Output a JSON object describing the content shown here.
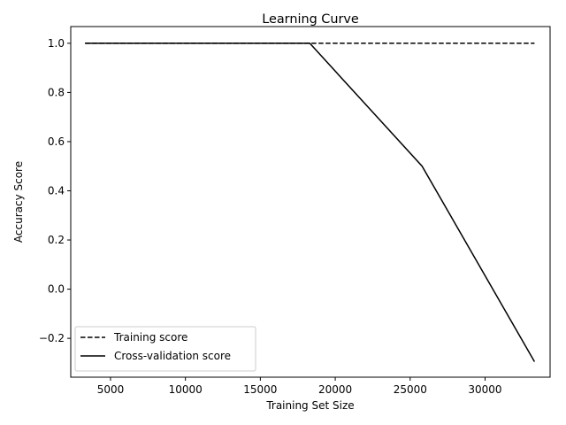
{
  "chart_data": {
    "type": "line",
    "title": "Learning Curve",
    "xlabel": "Training Set Size",
    "ylabel": "Accuracy Score",
    "xlim": [
      2346,
      34339
    ],
    "ylim": [
      -0.358,
      1.068
    ],
    "xticks": [
      5000,
      10000,
      15000,
      20000,
      25000,
      30000
    ],
    "xtick_labels": [
      "5000",
      "10000",
      "15000",
      "20000",
      "25000",
      "30000"
    ],
    "yticks": [
      -0.2,
      0.0,
      0.2,
      0.4,
      0.6,
      0.8,
      1.0
    ],
    "ytick_labels": [
      "−0.2",
      "0.0",
      "0.2",
      "0.4",
      "0.6",
      "0.8",
      "1.0"
    ],
    "grid": false,
    "legend_position": "lower-left",
    "series": [
      {
        "name": "Training score",
        "style": "dashed",
        "color": "#000000",
        "x": [
          3300,
          10800,
          18300,
          25800,
          33300
        ],
        "y": [
          1.0,
          1.0,
          1.0,
          1.0,
          1.0
        ]
      },
      {
        "name": "Cross-validation score",
        "style": "solid",
        "color": "#000000",
        "x": [
          3300,
          10800,
          18300,
          25800,
          33300
        ],
        "y": [
          1.0,
          1.0,
          1.0,
          0.5,
          -0.295
        ]
      }
    ]
  }
}
